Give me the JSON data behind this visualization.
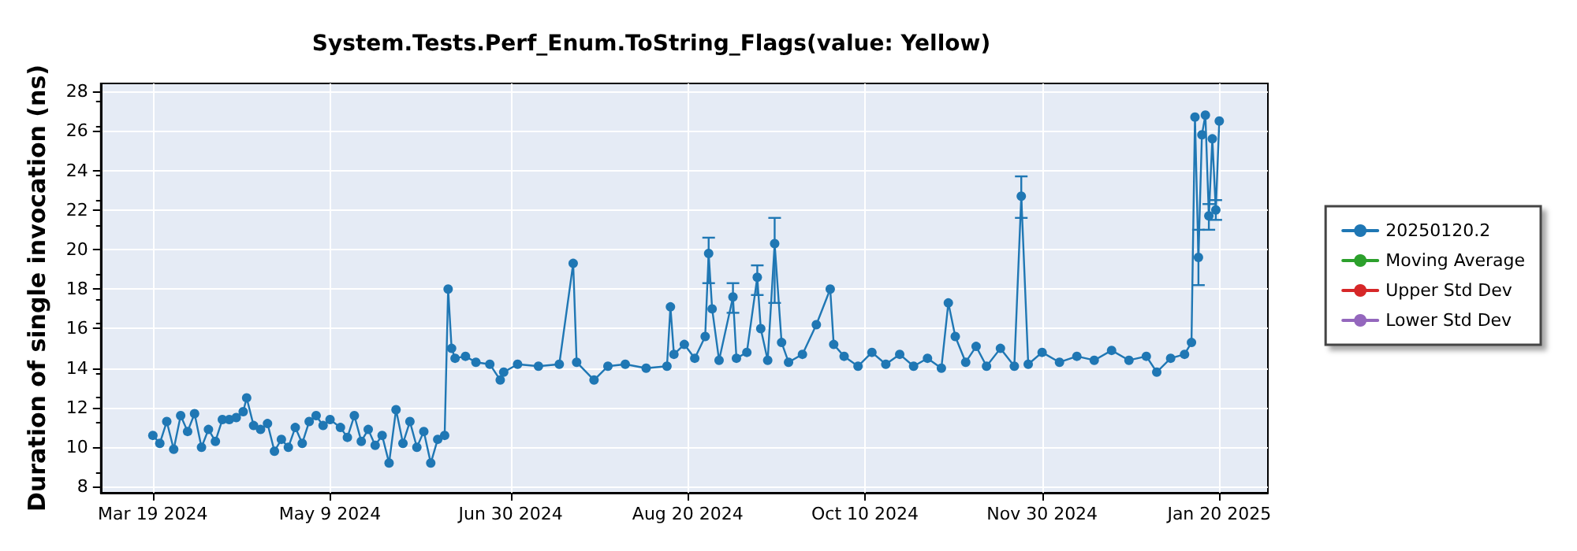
{
  "chart_data": {
    "type": "line",
    "title": "System.Tests.Perf_Enum.ToString_Flags(value: Yellow)",
    "ylabel": "Duration of single invocation (ns)",
    "xlim": [
      "2024-03-04",
      "2025-02-03"
    ],
    "ylim": [
      7.7,
      28.4
    ],
    "xticks": [
      {
        "value": "2024-03-19",
        "label": "Mar 19 2024"
      },
      {
        "value": "2024-05-09",
        "label": "May 9 2024"
      },
      {
        "value": "2024-06-30",
        "label": "Jun 30 2024"
      },
      {
        "value": "2024-08-20",
        "label": "Aug 20 2024"
      },
      {
        "value": "2024-10-10",
        "label": "Oct 10 2024"
      },
      {
        "value": "2024-11-30",
        "label": "Nov 30 2024"
      },
      {
        "value": "2025-01-20",
        "label": "Jan 20 2025"
      }
    ],
    "yticks": [
      8,
      10,
      12,
      14,
      16,
      18,
      20,
      22,
      24,
      26,
      28
    ],
    "grid": true,
    "legend": "right",
    "marker": "circle",
    "line_style": "solid",
    "x": [
      "2024-03-19",
      "2024-03-21",
      "2024-03-23",
      "2024-03-25",
      "2024-03-27",
      "2024-03-29",
      "2024-03-31",
      "2024-04-02",
      "2024-04-04",
      "2024-04-06",
      "2024-04-08",
      "2024-04-10",
      "2024-04-12",
      "2024-04-14",
      "2024-04-15",
      "2024-04-17",
      "2024-04-19",
      "2024-04-21",
      "2024-04-23",
      "2024-04-25",
      "2024-04-27",
      "2024-04-29",
      "2024-05-01",
      "2024-05-03",
      "2024-05-05",
      "2024-05-07",
      "2024-05-09",
      "2024-05-12",
      "2024-05-14",
      "2024-05-16",
      "2024-05-18",
      "2024-05-20",
      "2024-05-22",
      "2024-05-24",
      "2024-05-26",
      "2024-05-28",
      "2024-05-30",
      "2024-06-01",
      "2024-06-03",
      "2024-06-05",
      "2024-06-07",
      "2024-06-09",
      "2024-06-11",
      "2024-06-12",
      "2024-06-13",
      "2024-06-14",
      "2024-06-17",
      "2024-06-20",
      "2024-06-24",
      "2024-06-27",
      "2024-06-28",
      "2024-07-02",
      "2024-07-08",
      "2024-07-14",
      "2024-07-18",
      "2024-07-19",
      "2024-07-24",
      "2024-07-28",
      "2024-08-02",
      "2024-08-08",
      "2024-08-14",
      "2024-08-15",
      "2024-08-16",
      "2024-08-19",
      "2024-08-22",
      "2024-08-25",
      "2024-08-26",
      "2024-08-27",
      "2024-08-29",
      "2024-09-02",
      "2024-09-03",
      "2024-09-06",
      "2024-09-09",
      "2024-09-10",
      "2024-09-12",
      "2024-09-14",
      "2024-09-16",
      "2024-09-18",
      "2024-09-22",
      "2024-09-26",
      "2024-09-30",
      "2024-10-01",
      "2024-10-04",
      "2024-10-08",
      "2024-10-12",
      "2024-10-16",
      "2024-10-20",
      "2024-10-24",
      "2024-10-28",
      "2024-11-01",
      "2024-11-03",
      "2024-11-05",
      "2024-11-08",
      "2024-11-11",
      "2024-11-14",
      "2024-11-18",
      "2024-11-22",
      "2024-11-24",
      "2024-11-26",
      "2024-11-30",
      "2024-12-05",
      "2024-12-10",
      "2024-12-15",
      "2024-12-20",
      "2024-12-25",
      "2024-12-30",
      "2025-01-02",
      "2025-01-06",
      "2025-01-10",
      "2025-01-12",
      "2025-01-13",
      "2025-01-14",
      "2025-01-15",
      "2025-01-16",
      "2025-01-17",
      "2025-01-18",
      "2025-01-19",
      "2025-01-20"
    ],
    "series": [
      {
        "name": "20250120.2",
        "color": "#1f77b4",
        "values": [
          10.6,
          10.2,
          11.3,
          9.9,
          11.6,
          10.8,
          11.7,
          10.0,
          10.9,
          10.3,
          11.4,
          11.4,
          11.5,
          11.8,
          12.5,
          11.1,
          10.9,
          11.2,
          9.8,
          10.4,
          10.0,
          11.0,
          10.2,
          11.3,
          11.6,
          11.1,
          11.4,
          11.0,
          10.5,
          11.6,
          10.3,
          10.9,
          10.1,
          10.6,
          9.2,
          11.9,
          10.2,
          11.3,
          10.0,
          10.8,
          9.2,
          10.4,
          10.6,
          18.0,
          15.0,
          14.5,
          14.6,
          14.3,
          14.2,
          13.4,
          13.8,
          14.2,
          14.1,
          14.2,
          19.3,
          14.3,
          13.4,
          14.1,
          14.2,
          14.0,
          14.1,
          17.1,
          14.7,
          15.2,
          14.5,
          15.6,
          19.8,
          17.0,
          14.4,
          17.6,
          14.5,
          14.8,
          18.6,
          16.0,
          14.4,
          20.3,
          15.3,
          14.3,
          14.7,
          16.2,
          18.0,
          15.2,
          14.6,
          14.1,
          14.8,
          14.2,
          14.7,
          14.1,
          14.5,
          14.0,
          17.3,
          15.6,
          14.3,
          15.1,
          14.1,
          15.0,
          14.1,
          22.7,
          14.2,
          14.8,
          14.3,
          14.6,
          14.4,
          14.9,
          14.4,
          14.6,
          13.8,
          14.5,
          14.7,
          15.3,
          26.7,
          19.6,
          25.8,
          26.8,
          21.7,
          25.6,
          22.0,
          26.5
        ],
        "errors": [
          null,
          null,
          null,
          null,
          null,
          null,
          null,
          null,
          null,
          null,
          null,
          null,
          null,
          null,
          null,
          null,
          null,
          null,
          null,
          null,
          null,
          null,
          null,
          null,
          null,
          null,
          null,
          null,
          null,
          null,
          null,
          null,
          null,
          null,
          null,
          null,
          null,
          null,
          null,
          null,
          null,
          null,
          null,
          null,
          null,
          null,
          null,
          null,
          null,
          null,
          null,
          null,
          null,
          null,
          null,
          null,
          null,
          null,
          null,
          null,
          null,
          null,
          null,
          null,
          null,
          null,
          [
            18.3,
            20.6
          ],
          null,
          null,
          [
            16.8,
            18.3
          ],
          null,
          null,
          [
            17.7,
            19.2
          ],
          null,
          null,
          [
            17.3,
            21.6
          ],
          null,
          null,
          null,
          null,
          null,
          null,
          null,
          null,
          null,
          null,
          null,
          null,
          null,
          null,
          null,
          null,
          null,
          null,
          null,
          null,
          null,
          [
            21.6,
            23.7
          ],
          null,
          null,
          null,
          null,
          null,
          null,
          null,
          null,
          null,
          null,
          null,
          null,
          null,
          [
            18.2,
            21.0
          ],
          null,
          null,
          [
            21.0,
            22.3
          ],
          null,
          [
            21.5,
            22.5
          ],
          null
        ]
      },
      {
        "name": "Moving Average",
        "color": "#2ca02c",
        "values": [
          null,
          null,
          null,
          null,
          null,
          null,
          null,
          null,
          null,
          null,
          null,
          null,
          null,
          null,
          null,
          null,
          null,
          null,
          null,
          null,
          null,
          null,
          null,
          null,
          null,
          null,
          null,
          null,
          null,
          null,
          null,
          null,
          null,
          null,
          null,
          null,
          null,
          null,
          null,
          null,
          null,
          null,
          null,
          null,
          null,
          null,
          null,
          null,
          null,
          null,
          null,
          null,
          null,
          null,
          null,
          null,
          null,
          null,
          null,
          null,
          null,
          null,
          null,
          null,
          null,
          null,
          null,
          null,
          null,
          null,
          null,
          null,
          null,
          null,
          null,
          null,
          null,
          null,
          null,
          null,
          null,
          null,
          null,
          null,
          null,
          null,
          null,
          null,
          null,
          null,
          null,
          null,
          null,
          null,
          null,
          null,
          null,
          null,
          null,
          null,
          null,
          null,
          null,
          null,
          null,
          null,
          null,
          null,
          null,
          null,
          null,
          null,
          null,
          null,
          null,
          null,
          null,
          null
        ]
      },
      {
        "name": "Upper Std Dev",
        "color": "#d62728",
        "values": [
          null,
          null,
          null,
          null,
          null,
          null,
          null,
          null,
          null,
          null,
          null,
          null,
          null,
          null,
          null,
          null,
          null,
          null,
          null,
          null,
          null,
          null,
          null,
          null,
          null,
          null,
          null,
          null,
          null,
          null,
          null,
          null,
          null,
          null,
          null,
          null,
          null,
          null,
          null,
          null,
          null,
          null,
          null,
          null,
          null,
          null,
          null,
          null,
          null,
          null,
          null,
          null,
          null,
          null,
          null,
          null,
          null,
          null,
          null,
          null,
          null,
          null,
          null,
          null,
          null,
          null,
          null,
          null,
          null,
          null,
          null,
          null,
          null,
          null,
          null,
          null,
          null,
          null,
          null,
          null,
          null,
          null,
          null,
          null,
          null,
          null,
          null,
          null,
          null,
          null,
          null,
          null,
          null,
          null,
          null,
          null,
          null,
          null,
          null,
          null,
          null,
          null,
          null,
          null,
          null,
          null,
          null,
          null,
          null,
          null,
          null,
          null,
          null,
          null,
          null,
          null,
          null,
          null
        ]
      },
      {
        "name": "Lower Std Dev",
        "color": "#9467bd",
        "values": [
          null,
          null,
          null,
          null,
          null,
          null,
          null,
          null,
          null,
          null,
          null,
          null,
          null,
          null,
          null,
          null,
          null,
          null,
          null,
          null,
          null,
          null,
          null,
          null,
          null,
          null,
          null,
          null,
          null,
          null,
          null,
          null,
          null,
          null,
          null,
          null,
          null,
          null,
          null,
          null,
          null,
          null,
          null,
          null,
          null,
          null,
          null,
          null,
          null,
          null,
          null,
          null,
          null,
          null,
          null,
          null,
          null,
          null,
          null,
          null,
          null,
          null,
          null,
          null,
          null,
          null,
          null,
          null,
          null,
          null,
          null,
          null,
          null,
          null,
          null,
          null,
          null,
          null,
          null,
          null,
          null,
          null,
          null,
          null,
          null,
          null,
          null,
          null,
          null,
          null,
          null,
          null,
          null,
          null,
          null,
          null,
          null,
          null,
          null,
          null,
          null,
          null,
          null,
          null,
          null,
          null,
          null,
          null,
          null,
          null,
          null,
          null,
          null,
          null,
          null,
          null,
          null,
          null
        ]
      }
    ]
  }
}
